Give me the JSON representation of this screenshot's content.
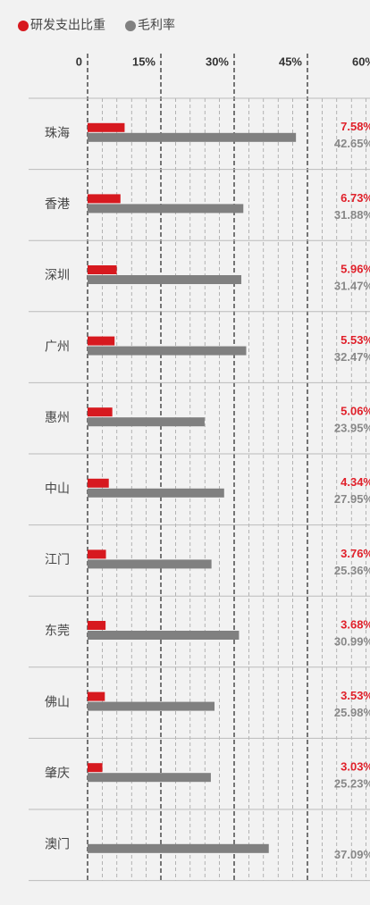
{
  "chart_data": {
    "type": "bar",
    "categories": [
      "珠海",
      "香港",
      "深圳",
      "广州",
      "惠州",
      "中山",
      "江门",
      "东莞",
      "佛山",
      "肇庆",
      "澳门"
    ],
    "series": [
      {
        "name": "研发支出比重",
        "color": "#d7191f",
        "values": [
          7.58,
          6.73,
          5.96,
          5.53,
          5.06,
          4.34,
          3.76,
          3.68,
          3.53,
          3.03,
          null
        ],
        "value_labels": [
          "7.58%",
          "6.73%",
          "5.96%",
          "5.53%",
          "5.06%",
          "4.34%",
          "3.76%",
          "3.68%",
          "3.53%",
          "3.03%",
          null
        ]
      },
      {
        "name": "毛利率",
        "color": "#808080",
        "values": [
          42.65,
          31.88,
          31.47,
          32.47,
          23.95,
          27.95,
          25.36,
          30.99,
          25.98,
          25.23,
          37.09
        ],
        "value_labels": [
          "42.65%",
          "31.88%",
          "31.47%",
          "32.47%",
          "23.95%",
          "27.95%",
          "25.36%",
          "30.99%",
          "25.98%",
          "25.23%",
          "37.09%"
        ]
      }
    ],
    "xlim": [
      0,
      60
    ],
    "xticks": [
      0,
      {
        "value": 15,
        "label": "15%"
      },
      {
        "value": 30,
        "label": "30%"
      },
      {
        "value": 45,
        "label": "45%"
      },
      {
        "value": 60,
        "label": "60%"
      }
    ],
    "minor_xticks": [
      3,
      6,
      9,
      12,
      18,
      21,
      24,
      27,
      33,
      36,
      39,
      42,
      48,
      51,
      54,
      57
    ],
    "grid": true
  }
}
